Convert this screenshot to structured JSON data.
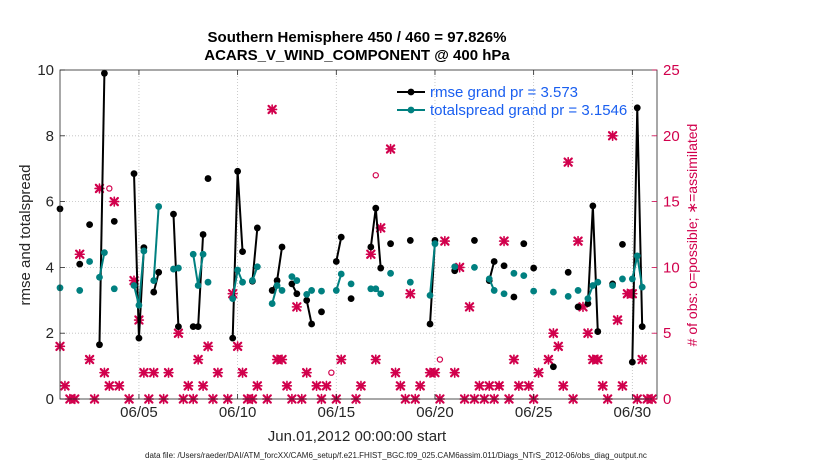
{
  "chart_data": {
    "type": "line",
    "title_line1": "Southern Hemisphere 450 / 460 = 97.826%",
    "title_line2": "ACARS_V_WIND_COMPONENT @ 400 hPa",
    "xlabel": "Jun.01,2012 00:00:00 start",
    "ylabel_left": "rmse and totalspread",
    "ylabel_right": "# of obs: o=possible; ∗=assimilated",
    "xlim": [
      1.0,
      31.25
    ],
    "ylim_left": [
      0,
      10
    ],
    "ylim_right": [
      0,
      25
    ],
    "x_ticks": [
      5,
      10,
      15,
      20,
      25,
      30
    ],
    "x_tick_labels": [
      "06/05",
      "06/10",
      "06/15",
      "06/20",
      "06/25",
      "06/30"
    ],
    "y_ticks_left": [
      "0",
      "2",
      "4",
      "6",
      "8",
      "10"
    ],
    "y_ticks_right": [
      "0",
      "5",
      "10",
      "15",
      "20",
      "25"
    ],
    "legend": [
      {
        "name": "rmse grand pr = 3.573",
        "color": "#000000"
      },
      {
        "name": "totalspread grand pr = 3.1546",
        "color": "#008080"
      }
    ],
    "footer": "data file: /Users/raeder/DAI/ATM_forcXX/CAM6_setup/f.e21.FHIST_BGC.f09_025.CAM6assim.011/Diags_NTrS_2012-06/obs_diag_output.nc",
    "series": [
      {
        "name": "rmse",
        "color": "#000000",
        "segments": [
          [
            [
              1.0,
              5.78
            ]
          ],
          [
            [
              2.0,
              4.1
            ]
          ],
          [
            [
              2.5,
              5.3
            ]
          ],
          [
            [
              3.0,
              1.65
            ],
            [
              3.25,
              9.9
            ]
          ],
          [
            [
              3.75,
              5.4
            ]
          ],
          [
            [
              4.75,
              6.85
            ],
            [
              5.0,
              1.85
            ],
            [
              5.25,
              4.6
            ]
          ],
          [
            [
              5.75,
              3.25
            ],
            [
              6.0,
              3.85
            ]
          ],
          [
            [
              6.75,
              5.62
            ],
            [
              7.0,
              2.2
            ]
          ],
          [
            [
              7.75,
              2.2
            ],
            [
              8.0,
              2.2
            ],
            [
              8.25,
              5.0
            ]
          ],
          [
            [
              8.5,
              6.7
            ]
          ],
          [
            [
              9.75,
              1.85
            ],
            [
              10.0,
              6.92
            ],
            [
              10.25,
              4.48
            ]
          ],
          [
            [
              10.75,
              3.58
            ],
            [
              11.0,
              5.2
            ]
          ],
          [
            [
              11.75,
              3.3
            ],
            [
              12.0,
              3.6
            ],
            [
              12.25,
              4.62
            ]
          ],
          [
            [
              12.75,
              3.5
            ],
            [
              13.0,
              3.2
            ]
          ],
          [
            [
              13.5,
              3.0
            ],
            [
              13.75,
              2.28
            ]
          ],
          [
            [
              14.25,
              2.65
            ]
          ],
          [
            [
              15.0,
              4.18
            ],
            [
              15.25,
              4.92
            ]
          ],
          [
            [
              15.75,
              3.05
            ]
          ],
          [
            [
              16.75,
              4.62
            ],
            [
              17.0,
              5.8
            ],
            [
              17.25,
              3.98
            ]
          ],
          [
            [
              17.75,
              4.72
            ]
          ],
          [
            [
              18.75,
              4.82
            ]
          ],
          [
            [
              19.75,
              2.28
            ],
            [
              20.0,
              4.82
            ]
          ],
          [
            [
              21.0,
              3.9
            ]
          ],
          [
            [
              22.0,
              4.82
            ]
          ],
          [
            [
              22.75,
              3.6
            ],
            [
              23.0,
              4.18
            ]
          ],
          [
            [
              23.5,
              4.05
            ]
          ],
          [
            [
              24.0,
              3.1
            ]
          ],
          [
            [
              24.5,
              4.72
            ]
          ],
          [
            [
              25.0,
              3.98
            ]
          ],
          [
            [
              26.0,
              0.98
            ]
          ],
          [
            [
              26.75,
              3.85
            ]
          ],
          [
            [
              27.25,
              2.8
            ]
          ],
          [
            [
              27.75,
              2.9
            ],
            [
              28.0,
              5.87
            ],
            [
              28.25,
              2.05
            ]
          ],
          [
            [
              29.0,
              3.5
            ]
          ],
          [
            [
              29.5,
              4.7
            ]
          ],
          [
            [
              30.0,
              1.12
            ],
            [
              30.25,
              8.85
            ],
            [
              30.5,
              2.2
            ]
          ]
        ]
      },
      {
        "name": "totalspread",
        "color": "#008080",
        "segments": [
          [
            [
              1.0,
              3.38
            ]
          ],
          [
            [
              2.0,
              3.3
            ]
          ],
          [
            [
              2.5,
              4.18
            ]
          ],
          [
            [
              3.0,
              3.7
            ],
            [
              3.25,
              4.45
            ]
          ],
          [
            [
              3.75,
              3.35
            ]
          ],
          [
            [
              4.75,
              3.45
            ],
            [
              5.0,
              2.85
            ],
            [
              5.25,
              4.5
            ]
          ],
          [
            [
              5.75,
              3.6
            ],
            [
              6.0,
              5.85
            ]
          ],
          [
            [
              6.75,
              3.95
            ],
            [
              7.0,
              3.98
            ]
          ],
          [
            [
              7.75,
              4.4
            ],
            [
              8.0,
              3.45
            ],
            [
              8.25,
              4.4
            ]
          ],
          [
            [
              8.5,
              3.55
            ]
          ],
          [
            [
              9.75,
              3.05
            ],
            [
              10.0,
              3.92
            ],
            [
              10.25,
              3.55
            ]
          ],
          [
            [
              10.75,
              3.6
            ],
            [
              11.0,
              4.02
            ]
          ],
          [
            [
              11.75,
              2.9
            ],
            [
              12.0,
              3.45
            ],
            [
              12.25,
              3.3
            ]
          ],
          [
            [
              12.75,
              3.72
            ],
            [
              13.0,
              3.6
            ]
          ],
          [
            [
              13.5,
              3.18
            ],
            [
              13.75,
              3.3
            ]
          ],
          [
            [
              14.25,
              3.28
            ]
          ],
          [
            [
              15.0,
              3.3
            ],
            [
              15.25,
              3.8
            ]
          ],
          [
            [
              15.75,
              3.5
            ]
          ],
          [
            [
              16.75,
              3.35
            ],
            [
              17.0,
              3.35
            ],
            [
              17.25,
              3.2
            ]
          ],
          [
            [
              17.75,
              3.82
            ]
          ],
          [
            [
              18.75,
              3.55
            ]
          ],
          [
            [
              19.75,
              3.15
            ],
            [
              20.0,
              4.72
            ]
          ],
          [
            [
              21.0,
              4.02
            ]
          ],
          [
            [
              22.0,
              4.0
            ]
          ],
          [
            [
              22.75,
              3.65
            ],
            [
              23.0,
              3.3
            ]
          ],
          [
            [
              23.5,
              3.2
            ]
          ],
          [
            [
              24.0,
              3.82
            ]
          ],
          [
            [
              24.5,
              3.75
            ]
          ],
          [
            [
              25.0,
              3.28
            ]
          ],
          [
            [
              26.0,
              3.25
            ]
          ],
          [
            [
              26.75,
              3.12
            ]
          ],
          [
            [
              27.25,
              3.3
            ]
          ],
          [
            [
              27.75,
              3.05
            ],
            [
              28.0,
              3.45
            ],
            [
              28.25,
              3.55
            ]
          ],
          [
            [
              29.0,
              3.45
            ]
          ],
          [
            [
              29.5,
              3.65
            ]
          ],
          [
            [
              30.0,
              3.65
            ],
            [
              30.25,
              4.35
            ],
            [
              30.5,
              3.4
            ]
          ]
        ]
      }
    ],
    "obs_assimilated": {
      "color": "#d1004c",
      "points": [
        [
          1.0,
          4
        ],
        [
          1.25,
          1
        ],
        [
          1.5,
          0
        ],
        [
          1.75,
          0
        ],
        [
          2.0,
          11
        ],
        [
          2.5,
          3
        ],
        [
          2.75,
          0
        ],
        [
          3.0,
          16
        ],
        [
          3.25,
          2
        ],
        [
          3.5,
          1
        ],
        [
          3.75,
          15
        ],
        [
          4.0,
          1
        ],
        [
          4.5,
          0
        ],
        [
          4.75,
          9
        ],
        [
          5.0,
          6
        ],
        [
          5.25,
          2
        ],
        [
          5.5,
          0
        ],
        [
          5.75,
          2
        ],
        [
          6.25,
          0
        ],
        [
          6.5,
          2
        ],
        [
          7.0,
          5
        ],
        [
          7.25,
          0
        ],
        [
          7.5,
          1
        ],
        [
          7.75,
          0
        ],
        [
          8.0,
          3
        ],
        [
          8.25,
          1
        ],
        [
          8.5,
          4
        ],
        [
          8.75,
          0
        ],
        [
          9.0,
          2
        ],
        [
          9.5,
          0
        ],
        [
          9.75,
          8
        ],
        [
          10.0,
          4
        ],
        [
          10.25,
          2
        ],
        [
          10.5,
          0
        ],
        [
          10.75,
          0
        ],
        [
          11.0,
          1
        ],
        [
          11.5,
          0
        ],
        [
          11.75,
          22
        ],
        [
          12.0,
          3
        ],
        [
          12.25,
          3
        ],
        [
          12.5,
          1
        ],
        [
          12.75,
          0
        ],
        [
          13.0,
          7
        ],
        [
          13.25,
          0
        ],
        [
          13.5,
          2
        ],
        [
          14.0,
          1
        ],
        [
          14.25,
          0
        ],
        [
          14.5,
          1
        ],
        [
          15.0,
          0
        ],
        [
          15.25,
          3
        ],
        [
          16.0,
          0
        ],
        [
          16.25,
          1
        ],
        [
          16.75,
          11
        ],
        [
          17.0,
          3
        ],
        [
          17.25,
          13
        ],
        [
          17.75,
          19
        ],
        [
          18.0,
          2
        ],
        [
          18.25,
          1
        ],
        [
          18.5,
          0
        ],
        [
          18.75,
          8
        ],
        [
          19.0,
          0
        ],
        [
          19.25,
          1
        ],
        [
          19.75,
          2
        ],
        [
          20.0,
          2
        ],
        [
          20.25,
          0
        ],
        [
          20.5,
          12
        ],
        [
          21.0,
          2
        ],
        [
          21.25,
          10
        ],
        [
          21.5,
          0
        ],
        [
          21.75,
          7
        ],
        [
          22.0,
          0
        ],
        [
          22.25,
          1
        ],
        [
          22.5,
          0
        ],
        [
          22.75,
          1
        ],
        [
          23.0,
          0
        ],
        [
          23.25,
          1
        ],
        [
          23.5,
          12
        ],
        [
          23.75,
          0
        ],
        [
          24.0,
          3
        ],
        [
          24.25,
          1
        ],
        [
          24.75,
          1
        ],
        [
          25.0,
          0
        ],
        [
          25.25,
          2
        ],
        [
          25.75,
          3
        ],
        [
          26.0,
          5
        ],
        [
          26.25,
          4
        ],
        [
          26.5,
          1
        ],
        [
          26.75,
          18
        ],
        [
          27.0,
          0
        ],
        [
          27.25,
          12
        ],
        [
          27.5,
          7
        ],
        [
          27.75,
          5
        ],
        [
          28.0,
          3
        ],
        [
          28.25,
          3
        ],
        [
          28.5,
          1
        ],
        [
          28.75,
          0
        ],
        [
          29.0,
          20
        ],
        [
          29.25,
          6
        ],
        [
          29.5,
          1
        ],
        [
          29.75,
          8
        ],
        [
          30.0,
          8
        ],
        [
          30.25,
          0
        ],
        [
          30.5,
          3
        ],
        [
          30.75,
          0
        ],
        [
          31.0,
          0
        ]
      ]
    },
    "obs_possible": {
      "color": "#d1004c",
      "points": [
        [
          3.5,
          16
        ],
        [
          17.0,
          17
        ],
        [
          20.25,
          3
        ],
        [
          23.25,
          1
        ],
        [
          14.75,
          2
        ]
      ]
    }
  }
}
